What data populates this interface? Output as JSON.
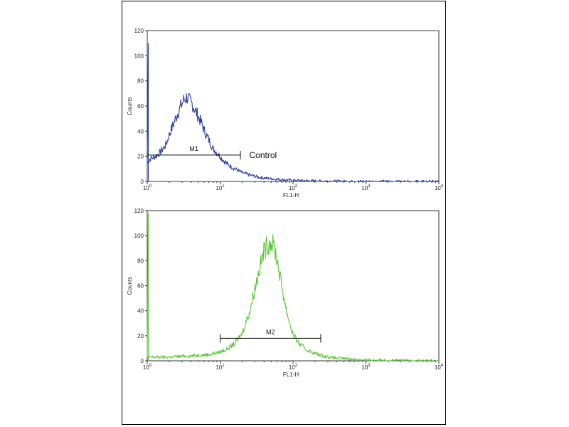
{
  "chart_data": [
    {
      "type": "line",
      "title": "",
      "xlabel": "FL1-H",
      "ylabel": "Counts",
      "x_scale": "log",
      "xlim": [
        1,
        10000
      ],
      "ylim": [
        0,
        120
      ],
      "x_ticks": [
        1,
        10,
        100,
        1000,
        10000
      ],
      "x_tick_labels": [
        {
          "base": "10",
          "exp": "0"
        },
        {
          "base": "10",
          "exp": "1"
        },
        {
          "base": "10",
          "exp": "2"
        },
        {
          "base": "10",
          "exp": "3"
        },
        {
          "base": "10",
          "exp": "4"
        }
      ],
      "y_ticks": [
        0,
        20,
        40,
        60,
        80,
        100,
        120
      ],
      "y_tick_labels": [
        "0",
        "20",
        "40",
        "60",
        "80",
        "100",
        "120"
      ],
      "grid": false,
      "series": [
        {
          "color": "#2b3fa0",
          "x": [
            1,
            1.1,
            1.3,
            1.5,
            1.8,
            2.0,
            2.3,
            2.6,
            2.9,
            3.2,
            3.5,
            3.8,
            4.2,
            4.6,
            5.0,
            5.5,
            6.0,
            6.6,
            7.3,
            8.0,
            9.0,
            10,
            11,
            12.5,
            14,
            16,
            18,
            20,
            24,
            28,
            33,
            40,
            50,
            60,
            75,
            90,
            110,
            140,
            180,
            250,
            350,
            500,
            700,
            1000,
            2000,
            5000,
            10000
          ],
          "y": [
            15,
            18,
            20,
            23,
            29,
            37,
            46,
            54,
            60,
            65,
            67,
            64,
            61,
            56,
            52,
            47,
            41,
            36,
            31,
            26,
            23,
            20,
            17,
            14,
            12,
            10,
            8.5,
            7,
            5.5,
            4.5,
            3.5,
            2.8,
            2.2,
            1.8,
            1.4,
            1.1,
            0.9,
            0.7,
            0.5,
            0.4,
            0.3,
            0.2,
            0.1,
            0.1,
            0,
            0,
            0
          ]
        }
      ],
      "gate": {
        "label": "M1",
        "x_start": 1,
        "x_end": 19,
        "y": 21
      },
      "annotation": {
        "text": "Control",
        "x": 21,
        "y": 21
      }
    },
    {
      "type": "line",
      "title": "",
      "xlabel": "FL1-H",
      "ylabel": "Counts",
      "x_scale": "log",
      "xlim": [
        1,
        10000
      ],
      "ylim": [
        0,
        120
      ],
      "x_ticks": [
        1,
        10,
        100,
        1000,
        10000
      ],
      "x_tick_labels": [
        {
          "base": "10",
          "exp": "0"
        },
        {
          "base": "10",
          "exp": "1"
        },
        {
          "base": "10",
          "exp": "2"
        },
        {
          "base": "10",
          "exp": "3"
        },
        {
          "base": "10",
          "exp": "4"
        }
      ],
      "y_ticks": [
        0,
        20,
        40,
        60,
        80,
        100,
        120
      ],
      "y_tick_labels": [
        "0",
        "20",
        "40",
        "60",
        "80",
        "100",
        "120"
      ],
      "grid": false,
      "series": [
        {
          "color": "#5fc83a",
          "x": [
            1,
            2,
            4,
            7,
            10,
            13,
            16,
            20,
            25,
            30,
            35,
            40,
            45,
            50,
            55,
            60,
            70,
            80,
            90,
            100,
            120,
            150,
            180,
            220,
            280,
            350,
            450,
            600,
            800,
            1000,
            1500,
            2000,
            3000,
            5000,
            10000
          ],
          "y": [
            3,
            3,
            4,
            5,
            7,
            10,
            14,
            22,
            38,
            58,
            75,
            88,
            93,
            95,
            91,
            82,
            60,
            42,
            30,
            21,
            14,
            9,
            7,
            5,
            3.5,
            2.5,
            2,
            1.5,
            1,
            0.8,
            0.6,
            0.5,
            0.4,
            0.3,
            0.2
          ]
        }
      ],
      "gate": {
        "label": "M2",
        "x_start": 10,
        "x_end": 240,
        "y": 18
      },
      "annotation": null
    }
  ]
}
